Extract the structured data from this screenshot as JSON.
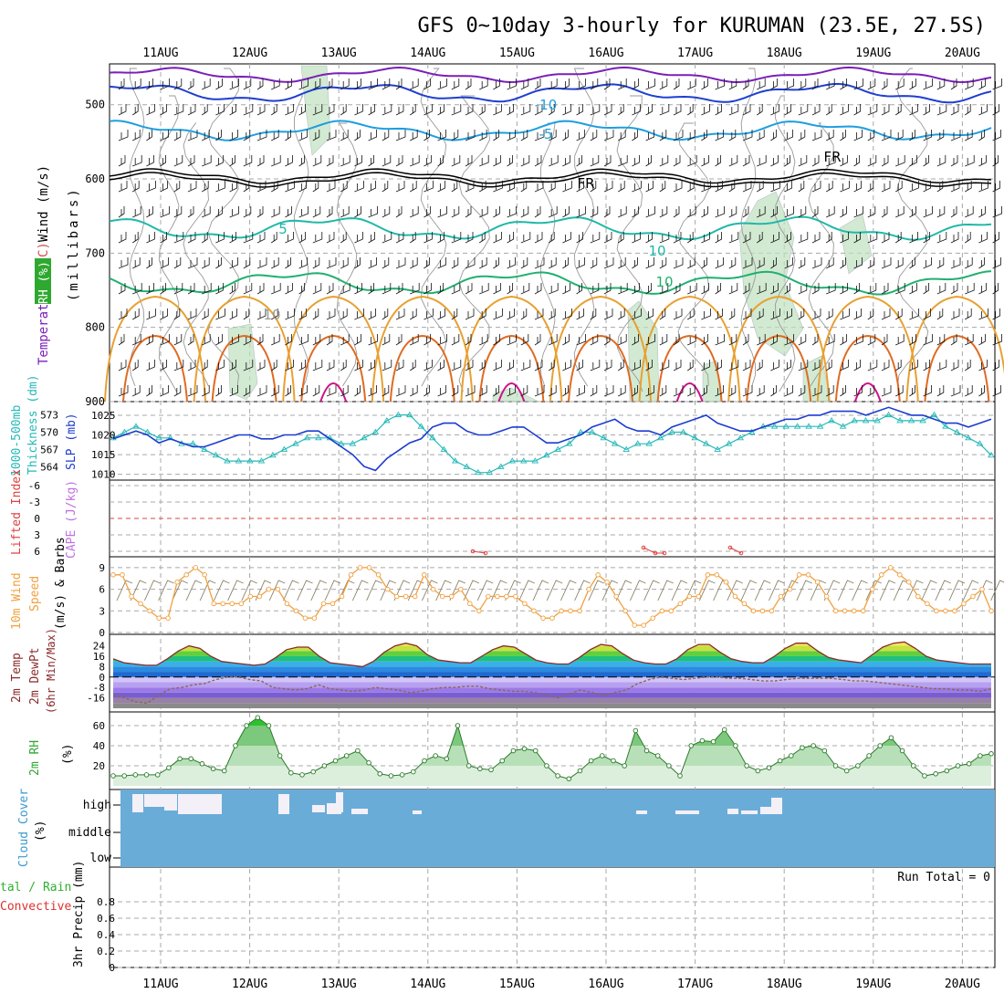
{
  "title": "GFS 0~10day 3-hourly for KURUMAN (23.5E, 27.5S)",
  "dates": [
    "11AUG",
    "12AUG",
    "13AUG",
    "14AUG",
    "15AUG",
    "16AUG",
    "17AUG",
    "18AUG",
    "19AUG",
    "20AUG"
  ],
  "colors": {
    "grid": "#a8a8a8",
    "rh_fill": "#bfe0bf",
    "temp_cold": "#7a1fb8",
    "temp_blue": "#1e3fd0",
    "temp_lightblue": "#1e9ee0",
    "freezing": "#000000",
    "temp_teal": "#1fb8a8",
    "temp_green": "#20b070",
    "temp_orange": "#e8a030",
    "temp_darkorange": "#e06a20",
    "temp_magenta": "#d0108a",
    "slp": "#1c3cd0",
    "thickness": "#26b8b8",
    "wind10": "#f0a040",
    "barb": "#888066",
    "cloud": "#6aacd8",
    "rh2m": "#2fa82f",
    "dewpt": "#8a6a50"
  },
  "chart_data": [
    {
      "type": "contour",
      "ylabel_parts": [
        {
          "text": "Wind (m/s)",
          "color": "#000000"
        },
        {
          "text": " (°C)",
          "color": "#d05050"
        },
        {
          "text": "Temperature",
          "color": "#7a1fb8"
        }
      ],
      "ylabel_right": "(millibars)",
      "rh_label": "RH (%)",
      "ylim": [
        900,
        445
      ],
      "yticks": [
        500,
        600,
        700,
        800,
        900
      ],
      "contour_labels": [
        "-10",
        "-5",
        "FR",
        "FR",
        "-5",
        "5",
        "10",
        "10",
        "10"
      ]
    },
    {
      "type": "line",
      "ylabel_left": "Thickness (dm)",
      "ylabel_left2": "1000-500mb",
      "ylabel_right": "SLP (mb)",
      "yticks_left": [
        564,
        567,
        570,
        573
      ],
      "yticks_right": [
        1010,
        1015,
        1020,
        1025
      ],
      "series": [
        {
          "name": "SLP",
          "axis": "right",
          "values": [
            1019,
            1020,
            1021,
            1020,
            1018,
            1019,
            1018,
            1017,
            1017,
            1018,
            1019,
            1020,
            1020,
            1019,
            1019,
            1020,
            1020,
            1021,
            1021,
            1019,
            1017,
            1015,
            1012,
            1011,
            1014,
            1016,
            1018,
            1019,
            1022,
            1023,
            1023,
            1021,
            1020,
            1020,
            1021,
            1022,
            1022,
            1020,
            1018,
            1018,
            1019,
            1020,
            1022,
            1023,
            1024,
            1022,
            1021,
            1021,
            1020,
            1022,
            1023,
            1024,
            1025,
            1023,
            1022,
            1021,
            1021,
            1022,
            1023,
            1024,
            1024,
            1025,
            1025,
            1026,
            1026,
            1026,
            1025,
            1026,
            1027,
            1026,
            1025,
            1025,
            1024,
            1023,
            1023,
            1022,
            1023,
            1024
          ]
        },
        {
          "name": "1000-500mb thickness",
          "axis": "left",
          "values": [
            569,
            570,
            571,
            570,
            569,
            569,
            568,
            568,
            567,
            566,
            565,
            565,
            565,
            565,
            566,
            567,
            568,
            569,
            569,
            569,
            568,
            568,
            569,
            570,
            572,
            573,
            573,
            571,
            569,
            567,
            565,
            564,
            563,
            563,
            564,
            565,
            565,
            565,
            566,
            567,
            568,
            570,
            570,
            569,
            568,
            567,
            568,
            568,
            569,
            570,
            570,
            569,
            568,
            567,
            568,
            569,
            570,
            571,
            571,
            571,
            571,
            571,
            571,
            572,
            571,
            572,
            572,
            572,
            573,
            572,
            572,
            572,
            573,
            571,
            570,
            569,
            568,
            566
          ]
        }
      ]
    },
    {
      "type": "line",
      "ylabel_left": "Lifted Index",
      "ylabel_right": "CAPE (J/kg)",
      "yticks": [
        "-6",
        "-3",
        "0",
        "3",
        "6"
      ],
      "ylim": [
        -6,
        6
      ],
      "series": [
        {
          "name": "Lifted Index",
          "values": [
            13,
            13,
            13,
            13,
            13,
            13,
            13,
            13,
            13,
            13,
            13,
            13,
            13,
            13,
            13,
            13,
            13,
            13,
            13,
            13,
            13,
            13,
            13,
            13,
            13,
            13,
            13,
            13,
            13,
            13,
            5.5,
            6,
            13,
            13,
            13,
            13,
            13,
            13,
            13,
            13,
            13,
            13,
            13,
            13,
            13,
            13,
            13,
            13,
            13,
            13,
            13,
            13,
            13,
            13,
            5,
            5.6,
            5.7,
            13,
            13,
            13,
            13,
            13,
            5,
            5.8,
            13,
            13,
            13,
            13,
            13,
            13,
            13,
            13,
            13,
            13,
            13,
            13,
            13,
            13
          ]
        }
      ]
    },
    {
      "type": "line",
      "ylabel_left": "10m Wind",
      "ylabel_left2": "Speed",
      "ylabel_right": "(m/s) & Barbs",
      "yticks": [
        0,
        3,
        6,
        9
      ],
      "ylim": [
        0,
        10
      ],
      "series": [
        {
          "name": "10m Wind Speed",
          "values": [
            8,
            8,
            5,
            4,
            3,
            2,
            2,
            7,
            8,
            9,
            8,
            4,
            4,
            4,
            4,
            5,
            5,
            6,
            6,
            4,
            3,
            2,
            2,
            4,
            4,
            5,
            8,
            9,
            9,
            8,
            6,
            5,
            5,
            5,
            8,
            6,
            5,
            5,
            6,
            4,
            3,
            5,
            5,
            5,
            5,
            4,
            3,
            2,
            2,
            3,
            3,
            3,
            6,
            8,
            7,
            5,
            3,
            1,
            1,
            2,
            3,
            3,
            4,
            5,
            5,
            8,
            8,
            7,
            5,
            4,
            3,
            3,
            3,
            5,
            6,
            8,
            8,
            7,
            5,
            3,
            3,
            3,
            3,
            6,
            8,
            9,
            8,
            7,
            5,
            4,
            3,
            3,
            3,
            4,
            5,
            6,
            3
          ]
        }
      ]
    },
    {
      "type": "area",
      "ylabel_left": "2m Temp",
      "ylabel_left2": "2m DewPt",
      "ylabel_left3": "(6hr Min/Max)",
      "yticks": [
        24,
        16,
        8,
        0,
        -8,
        -16
      ],
      "ylim": [
        -24,
        30
      ],
      "series": [
        {
          "name": "2m Temp",
          "values": [
            14,
            11,
            10,
            9,
            9,
            14,
            20,
            24,
            22,
            16,
            12,
            11,
            10,
            9,
            10,
            15,
            21,
            23,
            23,
            16,
            11,
            10,
            9,
            8,
            12,
            19,
            24,
            26,
            24,
            17,
            13,
            12,
            11,
            11,
            16,
            21,
            24,
            23,
            18,
            13,
            11,
            10,
            10,
            15,
            21,
            25,
            24,
            18,
            13,
            11,
            10,
            10,
            14,
            21,
            25,
            25,
            19,
            14,
            12,
            11,
            11,
            16,
            22,
            26,
            26,
            20,
            15,
            13,
            12,
            11,
            17,
            23,
            26,
            27,
            22,
            16,
            13,
            12,
            11,
            10,
            10,
            10
          ]
        },
        {
          "name": "2m DewPt",
          "values": [
            -14,
            -16,
            -19,
            -20,
            -14,
            -9,
            -8,
            -6,
            -5,
            -2,
            0,
            0,
            -2,
            -3,
            -8,
            -9,
            -10,
            -9,
            -6,
            -9,
            -10,
            -11,
            -10,
            -8,
            -9,
            -10,
            -12,
            -11,
            -9,
            -8,
            -8,
            -7,
            -7,
            -9,
            -10,
            -11,
            -11,
            -12,
            -14,
            -16,
            -13,
            -10,
            -12,
            -14,
            -12,
            -10,
            -5,
            -2,
            0,
            -1,
            -2,
            -1,
            0,
            0,
            -1,
            -1,
            -2,
            -3,
            -3,
            -2,
            -1,
            -1,
            -1,
            -1,
            -2,
            -3,
            -3,
            -4,
            -5,
            -6,
            -7,
            -8,
            -9,
            -9,
            -10,
            -10,
            -11,
            -9
          ]
        }
      ]
    },
    {
      "type": "area",
      "ylabel_left": "2m RH",
      "ylabel_right": "(%)",
      "yticks": [
        20,
        40,
        60
      ],
      "ylim": [
        0,
        70
      ],
      "series": [
        {
          "name": "2m RH",
          "values": [
            10,
            10,
            11,
            11,
            11,
            18,
            27,
            27,
            22,
            17,
            15,
            40,
            60,
            68,
            60,
            30,
            13,
            11,
            14,
            20,
            25,
            30,
            35,
            23,
            12,
            10,
            11,
            14,
            25,
            30,
            27,
            60,
            20,
            17,
            16,
            25,
            35,
            37,
            35,
            20,
            10,
            7,
            15,
            25,
            30,
            25,
            20,
            55,
            35,
            30,
            20,
            10,
            40,
            45,
            44,
            56,
            40,
            20,
            15,
            18,
            25,
            30,
            38,
            40,
            35,
            20,
            15,
            20,
            30,
            40,
            48,
            35,
            20,
            10,
            12,
            15,
            20,
            22,
            30,
            32
          ]
        }
      ]
    },
    {
      "type": "area",
      "ylabel_left": "Cloud Cover",
      "ylabel_right": "(%)",
      "yticks": [
        "high",
        "middle",
        "low"
      ],
      "series": [
        {
          "name": "high cloud",
          "values": [
            0,
            0,
            0,
            0,
            0,
            0,
            0,
            0,
            0,
            0,
            0,
            0,
            0,
            0,
            0,
            0,
            0,
            0,
            0,
            0,
            0,
            0,
            0,
            0,
            0,
            0,
            0,
            0,
            0,
            0,
            0,
            0,
            0,
            0,
            0,
            0,
            0,
            0,
            0,
            0,
            0,
            0,
            0,
            0,
            0,
            0,
            0,
            0,
            0,
            0,
            0,
            0,
            0,
            0,
            0,
            0,
            0,
            0,
            0,
            0,
            0,
            0,
            0,
            0,
            0,
            0,
            0,
            0,
            0,
            0,
            0,
            0,
            0,
            0,
            0,
            0,
            0,
            0
          ]
        }
      ]
    },
    {
      "type": "bar",
      "ylabel_left": "tal / Rain",
      "ylabel_left2": "Convective",
      "ylabel_right": "3hr Precip (mm)",
      "yticks": [
        "0",
        "0.2",
        "0.4",
        "0.6",
        "0.8"
      ],
      "ylim": [
        0,
        1
      ],
      "run_total": "Run Total = 0",
      "values": []
    }
  ]
}
